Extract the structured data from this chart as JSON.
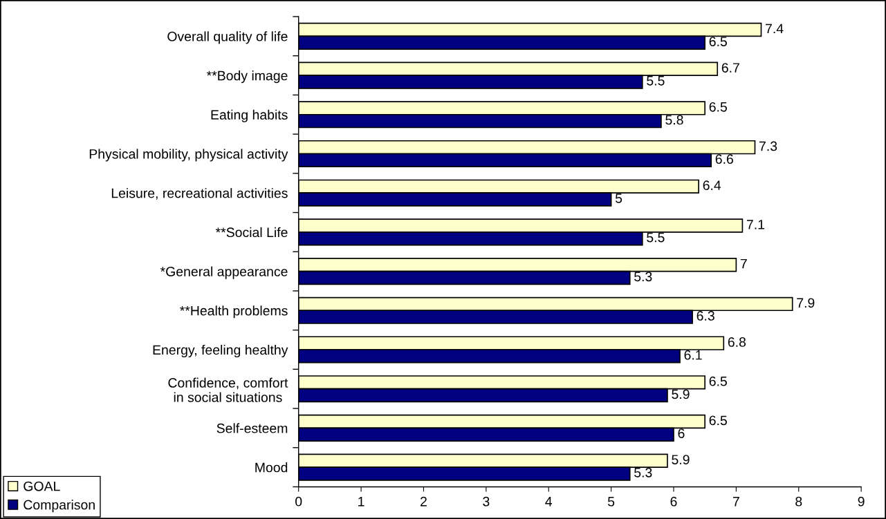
{
  "chart_data": {
    "type": "bar",
    "orientation": "horizontal",
    "categories": [
      "Overall quality of life",
      "**Body image",
      "Eating habits",
      "Physical mobility, physical activity",
      "Leisure, recreational activities",
      "**Social Life",
      "*General appearance",
      "**Health problems",
      "Energy, feeling healthy",
      "Confidence, comfort\nin social situations",
      "Self-esteem",
      "Mood"
    ],
    "series": [
      {
        "name": "GOAL",
        "color": "#ffffcc",
        "values": [
          7.4,
          6.7,
          6.5,
          7.3,
          6.4,
          7.1,
          7,
          7.9,
          6.8,
          6.5,
          6.5,
          5.9
        ]
      },
      {
        "name": "Comparison",
        "color": "#000080",
        "values": [
          6.5,
          5.5,
          5.8,
          6.6,
          5,
          5.5,
          5.3,
          6.3,
          6.1,
          5.9,
          6,
          5.3
        ]
      }
    ],
    "xlim": [
      0,
      9
    ],
    "xticks": [
      0,
      1,
      2,
      3,
      4,
      5,
      6,
      7,
      8,
      9
    ],
    "legend": "bottom left",
    "data_labels": true
  }
}
